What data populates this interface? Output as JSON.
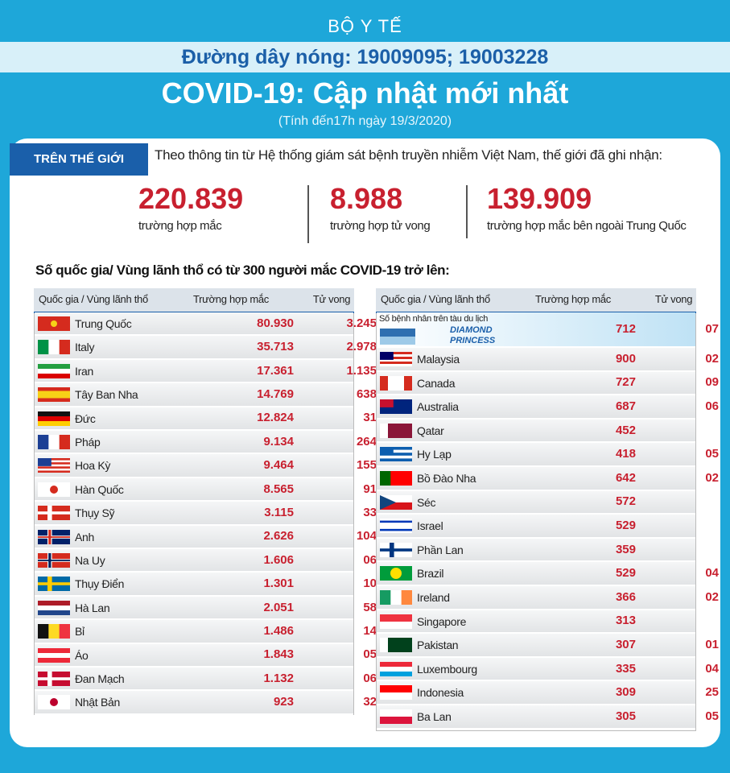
{
  "header": {
    "org": "BỘ Y TẾ",
    "hotline": "Đường dây nóng: 19009095; 19003228",
    "title": "COVID-19: Cập nhật mới nhất",
    "subtitle": "(Tính đến17h ngày 19/3/2020)"
  },
  "world": {
    "tag": "TRÊN THẾ GIỚI",
    "intro": "Theo thông tin từ Hệ thống giám sát bệnh truyền nhiễm Việt Nam, thế giới đã ghi nhận:",
    "stats": [
      {
        "value": "220.839",
        "label": "trường hợp mắc"
      },
      {
        "value": "8.988",
        "label": "trường hợp tử vong"
      },
      {
        "value": "139.909",
        "label": "trường hợp  mắc bên ngoài Trung Quốc"
      }
    ]
  },
  "tables": {
    "heading": "Số quốc gia/ Vùng lãnh thổ có từ 300 người  mắc COVID-19 trở lên:",
    "left": {
      "columns": [
        "Quốc gia / Vùng lãnh thổ",
        "Trường hợp mắc",
        "Tử vong"
      ],
      "rows": [
        [
          "Trung Quốc",
          "80.930",
          "3.245"
        ],
        [
          "Italy",
          "35.713",
          "2.978"
        ],
        [
          "Iran",
          "17.361",
          "1.135"
        ],
        [
          "Tây Ban Nha",
          "14.769",
          "638"
        ],
        [
          "Đức",
          "12.824",
          "31"
        ],
        [
          "Pháp",
          "9.134",
          "264"
        ],
        [
          "Hoa Kỳ",
          "9.464",
          "155"
        ],
        [
          "Hàn Quốc",
          "8.565",
          "91"
        ],
        [
          "Thụy Sỹ",
          "3.115",
          "33"
        ],
        [
          "Anh",
          "2.626",
          "104"
        ],
        [
          "Na Uy",
          "1.606",
          "06"
        ],
        [
          "Thụy Điển",
          "1.301",
          "10"
        ],
        [
          "Hà Lan",
          "2.051",
          "58"
        ],
        [
          "Bỉ",
          "1.486",
          "14"
        ],
        [
          "Áo",
          "1.843",
          "05"
        ],
        [
          "Đan Mạch",
          "1.132",
          "06"
        ],
        [
          "Nhật Bản",
          "923",
          "32"
        ]
      ]
    },
    "right": {
      "columns": [
        "Quốc gia / Vùng lãnh thổ",
        "Trường hợp mắc",
        "Tử vong"
      ],
      "ship_name": "DIAMOND PRINCESS",
      "rows": [
        [
          "Số bệnh nhân trên tàu du lịch",
          "712",
          "07"
        ],
        [
          "Malaysia",
          "900",
          "02"
        ],
        [
          "Canada",
          "727",
          "09"
        ],
        [
          "Australia",
          "687",
          "06"
        ],
        [
          "Qatar",
          "452"
        ],
        [
          "Hy Lạp",
          "418",
          "05"
        ],
        [
          "Bồ Đào Nha",
          "642",
          "02"
        ],
        [
          "Séc",
          "572"
        ],
        [
          "Israel",
          "529"
        ],
        [
          "Phần Lan",
          "359"
        ],
        [
          "Brazil",
          "529",
          "04"
        ],
        [
          "Ireland",
          "366",
          "02"
        ],
        [
          "Singapore",
          "313"
        ],
        [
          "Pakistan",
          "307",
          "01"
        ],
        [
          "Luxembourg",
          "335",
          "04"
        ],
        [
          "Indonesia",
          "309",
          "25"
        ],
        [
          "Ba Lan",
          "305",
          "05"
        ]
      ]
    }
  }
}
